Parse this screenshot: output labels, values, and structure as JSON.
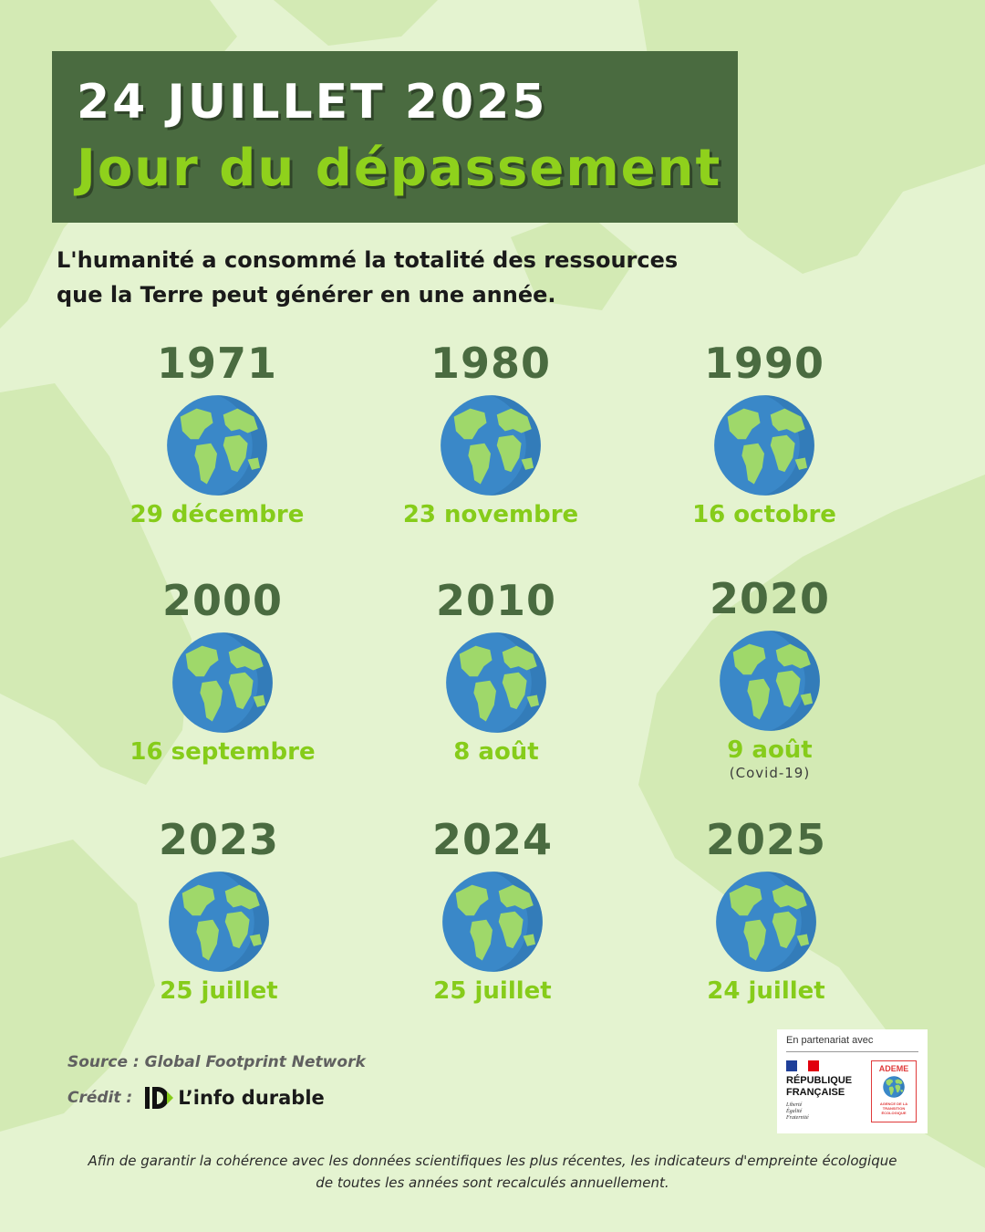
{
  "header": {
    "date": "24 JUILLET 2025",
    "title": "Jour du dépassement"
  },
  "intro": {
    "line1": "L'humanité a consommé la totalité des ressources",
    "line2": "que la Terre peut générer en une année."
  },
  "timeline": [
    {
      "year": "1971",
      "date": "29 décembre",
      "note": ""
    },
    {
      "year": "1980",
      "date": "23 novembre",
      "note": ""
    },
    {
      "year": "1990",
      "date": "16 octobre",
      "note": ""
    },
    {
      "year": "2000",
      "date": "16 septembre",
      "note": ""
    },
    {
      "year": "2010",
      "date": "8 août",
      "note": ""
    },
    {
      "year": "2020",
      "date": "9 août",
      "note": "(Covid-19)"
    },
    {
      "year": "2023",
      "date": "25 juillet",
      "note": ""
    },
    {
      "year": "2024",
      "date": "25 juillet",
      "note": ""
    },
    {
      "year": "2025",
      "date": "24 juillet",
      "note": ""
    }
  ],
  "source": "Source : Global Footprint Network",
  "credit": {
    "label": "Crédit :",
    "brand": "L’info durable"
  },
  "partner": {
    "title": "En partenariat avec",
    "rf_line1": "RÉPUBLIQUE",
    "rf_line2": "FRANÇAISE",
    "motto_1": "Liberté",
    "motto_2": "Égalité",
    "motto_3": "Fraternité",
    "ademe": "ADEME",
    "ademe_sub": "AGENCE DE LA TRANSITION ÉCOLOGIQUE"
  },
  "footer": {
    "line1": "Afin de garantir la cohérence avec les données scientifiques les plus récentes, les indicateurs d'empreinte écologique",
    "line2": "de toutes les années sont recalculés annuellement."
  },
  "colors": {
    "background": "#e4f3d0",
    "map": "#d3eab4",
    "title_box": "#4a6b40",
    "accent_green": "#86cc1a",
    "ocean": "#3a88c8",
    "land": "#9fd86a"
  },
  "icons": {
    "globe": "earth-globe-icon",
    "brand": "info-durable-logo"
  }
}
